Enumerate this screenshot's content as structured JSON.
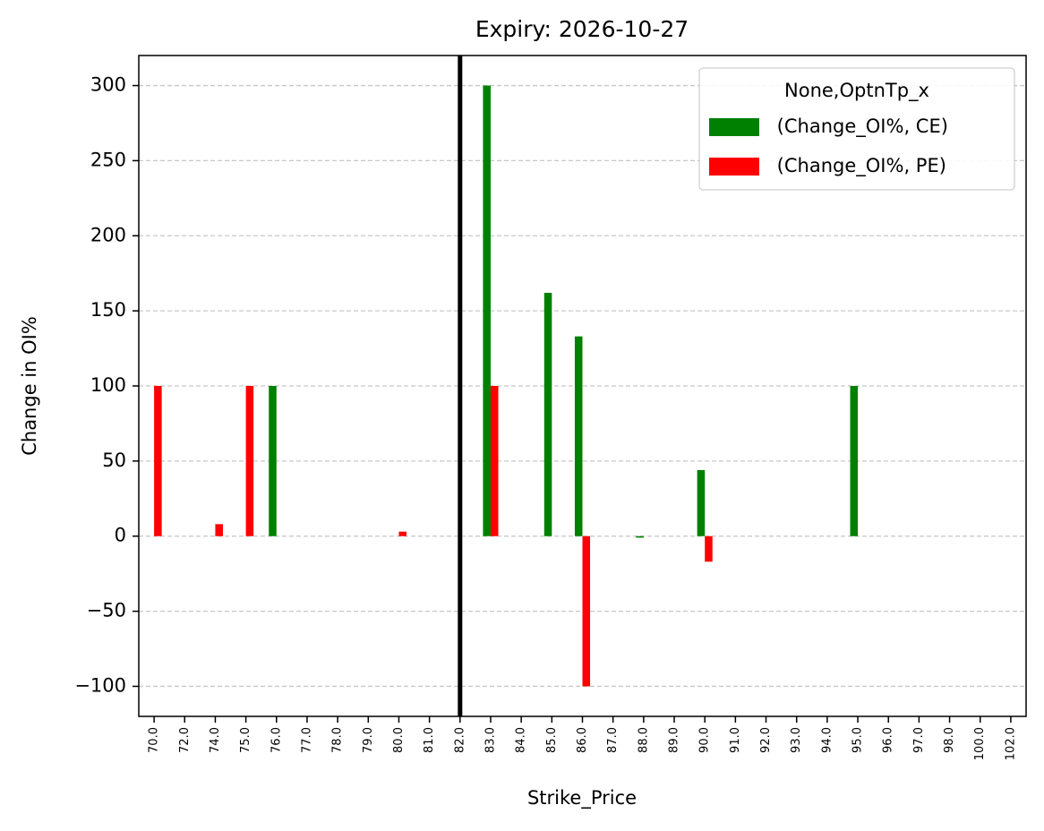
{
  "chart_data": {
    "type": "bar",
    "title": "Expiry: 2026-10-27",
    "x_label": "Strike_Price",
    "y_label": "Change in OI%",
    "categories": [
      "70.0",
      "72.0",
      "74.0",
      "75.0",
      "76.0",
      "77.0",
      "78.0",
      "79.0",
      "80.0",
      "81.0",
      "82.0",
      "83.0",
      "84.0",
      "85.0",
      "86.0",
      "87.0",
      "88.0",
      "89.0",
      "90.0",
      "91.0",
      "92.0",
      "93.0",
      "94.0",
      "95.0",
      "96.0",
      "97.0",
      "98.0",
      "100.0",
      "102.0"
    ],
    "series": [
      {
        "name": " (Change_OI%, CE)",
        "color": "#008000",
        "values": [
          0,
          0,
          0,
          0,
          100,
          0,
          0,
          0,
          0,
          0,
          0,
          300,
          0,
          162,
          133,
          0,
          -1,
          0,
          44,
          0,
          0,
          0,
          0,
          100,
          0,
          0,
          0,
          0,
          0
        ]
      },
      {
        "name": " (Change_OI%, PE)",
        "color": "#ff0000",
        "values": [
          100,
          0,
          8,
          100,
          0,
          0,
          0,
          0,
          3,
          0,
          0,
          100,
          0,
          0,
          -100,
          0,
          0,
          0,
          -17,
          0,
          0,
          0,
          0,
          0,
          0,
          0,
          0,
          0,
          0
        ]
      }
    ],
    "legend_title": "None,OptnTp_x",
    "legend": "upper right",
    "vline_category": "82.0",
    "ylim": [
      -120,
      320
    ],
    "yticks": [
      {
        "value": -100,
        "label": "−100"
      },
      {
        "value": -50,
        "label": "−50"
      },
      0,
      50,
      100,
      150,
      200,
      250,
      300
    ],
    "grid": true
  }
}
